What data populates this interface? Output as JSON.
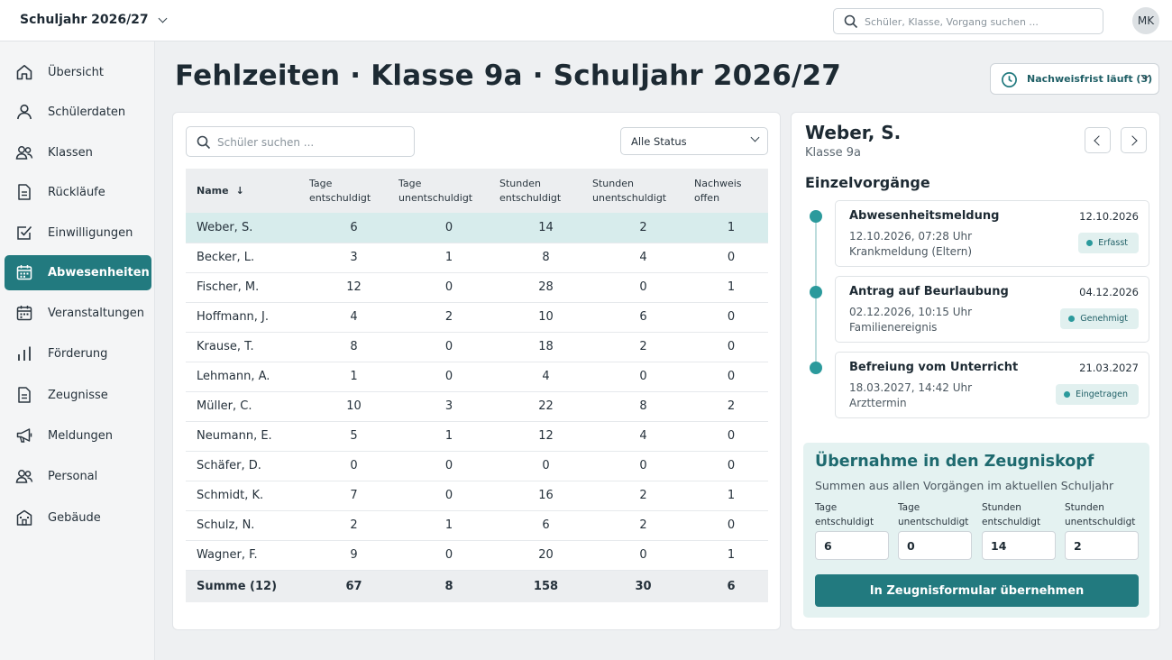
{
  "topbar": {
    "year_label": "Schuljahr 2026/27",
    "search_placeholder": "Schüler, Klasse, Vorgang suchen ...",
    "user_initials": "MK"
  },
  "sidebar": {
    "items": [
      {
        "label": "Übersicht",
        "icon": "home-icon",
        "active": false
      },
      {
        "label": "Schülerdaten",
        "icon": "user-icon",
        "active": false
      },
      {
        "label": "Klassen",
        "icon": "users-icon",
        "active": false
      },
      {
        "label": "Rückläufe",
        "icon": "document-icon",
        "active": false
      },
      {
        "label": "Einwilligungen",
        "icon": "checkbox-icon",
        "active": false
      },
      {
        "label": "Abwesenheiten",
        "icon": "calendar-icon",
        "active": true
      },
      {
        "label": "Veranstaltungen",
        "icon": "calendar-icon",
        "active": false
      },
      {
        "label": "Förderung",
        "icon": "bar-chart-icon",
        "active": false
      },
      {
        "label": "Zeugnisse",
        "icon": "document-icon",
        "active": false
      },
      {
        "label": "Meldungen",
        "icon": "megaphone-icon",
        "active": false
      },
      {
        "label": "Personal",
        "icon": "users-icon",
        "active": false
      },
      {
        "label": "Gebäude",
        "icon": "building-icon",
        "active": false
      }
    ]
  },
  "page": {
    "title": "Fehlzeiten · Klasse 9a · Schuljahr 2026/27",
    "deadline_label": "Nachweisfrist läuft (3)"
  },
  "table": {
    "search_placeholder": "Schüler suchen ...",
    "status_filter": "Alle Status",
    "headers": {
      "name": "Name",
      "tage_ent_1": "Tage",
      "tage_ent_2": "entschuldigt",
      "tage_unent_1": "Tage",
      "tage_unent_2": "unentschuldigt",
      "std_ent_1": "Stunden",
      "std_ent_2": "entschuldigt",
      "std_unent_1": "Stunden",
      "std_unent_2": "unentschuldigt",
      "nachweis_1": "Nachweis",
      "nachweis_2": "offen"
    },
    "rows": [
      {
        "name": "Weber, S.",
        "tage_ent": "6",
        "tage_unent": "0",
        "std_ent": "14",
        "std_unent": "2",
        "nachweis": "1"
      },
      {
        "name": "Becker, L.",
        "tage_ent": "3",
        "tage_unent": "1",
        "std_ent": "8",
        "std_unent": "4",
        "nachweis": "0"
      },
      {
        "name": "Fischer, M.",
        "tage_ent": "12",
        "tage_unent": "0",
        "std_ent": "28",
        "std_unent": "0",
        "nachweis": "1"
      },
      {
        "name": "Hoffmann, J.",
        "tage_ent": "4",
        "tage_unent": "2",
        "std_ent": "10",
        "std_unent": "6",
        "nachweis": "0"
      },
      {
        "name": "Krause, T.",
        "tage_ent": "8",
        "tage_unent": "0",
        "std_ent": "18",
        "std_unent": "2",
        "nachweis": "0"
      },
      {
        "name": "Lehmann, A.",
        "tage_ent": "1",
        "tage_unent": "0",
        "std_ent": "4",
        "std_unent": "0",
        "nachweis": "0"
      },
      {
        "name": "Müller, C.",
        "tage_ent": "10",
        "tage_unent": "3",
        "std_ent": "22",
        "std_unent": "8",
        "nachweis": "2"
      },
      {
        "name": "Neumann, E.",
        "tage_ent": "5",
        "tage_unent": "1",
        "std_ent": "12",
        "std_unent": "4",
        "nachweis": "0"
      },
      {
        "name": "Schäfer, D.",
        "tage_ent": "0",
        "tage_unent": "0",
        "std_ent": "0",
        "std_unent": "0",
        "nachweis": "0"
      },
      {
        "name": "Schmidt, K.",
        "tage_ent": "7",
        "tage_unent": "0",
        "std_ent": "16",
        "std_unent": "2",
        "nachweis": "1"
      },
      {
        "name": "Schulz, N.",
        "tage_ent": "2",
        "tage_unent": "1",
        "std_ent": "6",
        "std_unent": "2",
        "nachweis": "0"
      },
      {
        "name": "Wagner, F.",
        "tage_ent": "9",
        "tage_unent": "0",
        "std_ent": "20",
        "std_unent": "0",
        "nachweis": "1"
      }
    ],
    "sum": {
      "name": "Summe (12)",
      "tage_ent": "67",
      "tage_unent": "8",
      "std_ent": "158",
      "std_unent": "30",
      "nachweis": "6"
    }
  },
  "detail": {
    "student_name": "Weber, S.",
    "student_class": "Klasse 9a",
    "section_title": "Einzelvorgänge",
    "events": [
      {
        "title": "Abwesenheitsmeldung",
        "date": "12.10.2026",
        "time": "12.10.2026, 07:28 Uhr",
        "note": "Krankmeldung (Eltern)",
        "status": "Erfasst"
      },
      {
        "title": "Antrag auf Beurlaubung",
        "date": "04.12.2026",
        "time": "02.12.2026, 10:15 Uhr",
        "note": "Familienereignis",
        "status": "Genehmigt"
      },
      {
        "title": "Befreiung vom Unterricht",
        "date": "21.03.2027",
        "time": "18.03.2027, 14:42 Uhr",
        "note": "Arzttermin",
        "status": "Eingetragen"
      }
    ],
    "transfer": {
      "title": "Übernahme in den Zeugniskopf",
      "subtitle": "Summen aus allen Vorgängen im aktuellen Schuljahr",
      "fields": [
        {
          "label_1": "Tage",
          "label_2": "entschuldigt",
          "value": "6"
        },
        {
          "label_1": "Tage",
          "label_2": "unentschuldigt",
          "value": "0"
        },
        {
          "label_1": "Stunden",
          "label_2": "entschuldigt",
          "value": "14"
        },
        {
          "label_1": "Stunden",
          "label_2": "unentschuldigt",
          "value": "2"
        }
      ],
      "button_label": "In Zeugnisformular übernehmen"
    }
  },
  "colors": {
    "accent": "#227a7f",
    "accent_light": "#e4f2f1",
    "dot": "#2b9a9c"
  }
}
